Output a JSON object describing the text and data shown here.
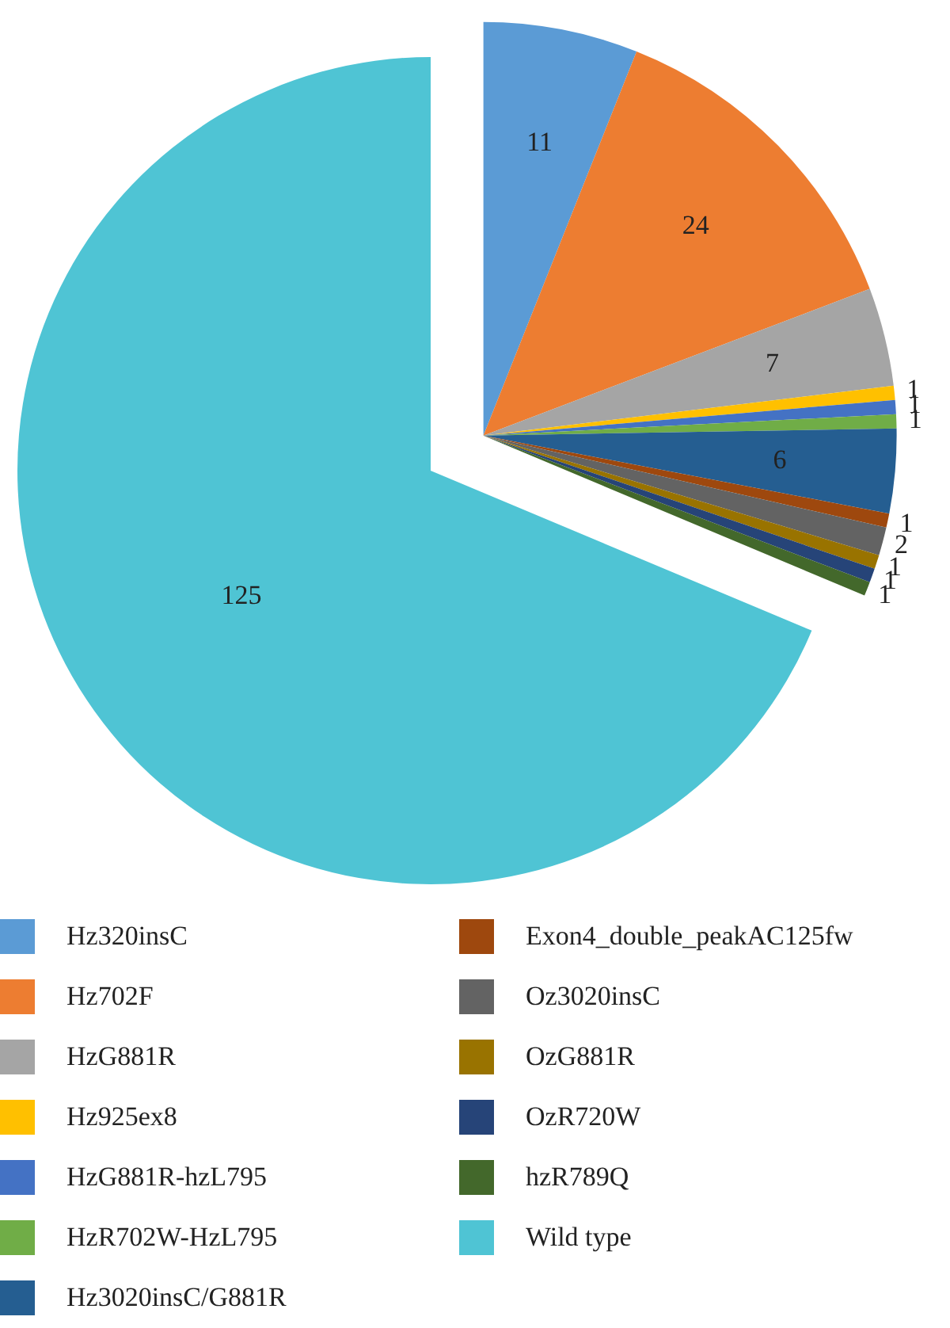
{
  "chart_data": {
    "type": "pie",
    "categories": [
      "Hz320insC",
      "Hz702F",
      "HzG881R",
      "Hz925ex8",
      "HzG881R-hzL795",
      "HzR702W-HzL795",
      "Hz3020insC/G881R",
      "Exon4_double_peakAC125fw",
      "Oz3020insC",
      "OzG881R",
      "OzR720W",
      "hzR789Q",
      "Wild type"
    ],
    "values": [
      11,
      24,
      7,
      1,
      1,
      1,
      6,
      1,
      2,
      1,
      1,
      1,
      125
    ],
    "colors": [
      "#5b9bd5",
      "#ed7d31",
      "#a5a5a5",
      "#ffc000",
      "#4472c4",
      "#70ad47",
      "#255e91",
      "#9e480e",
      "#636363",
      "#997300",
      "#264478",
      "#43682b",
      "#4fc4d4"
    ],
    "data_labels": true,
    "legend": "bottom"
  }
}
